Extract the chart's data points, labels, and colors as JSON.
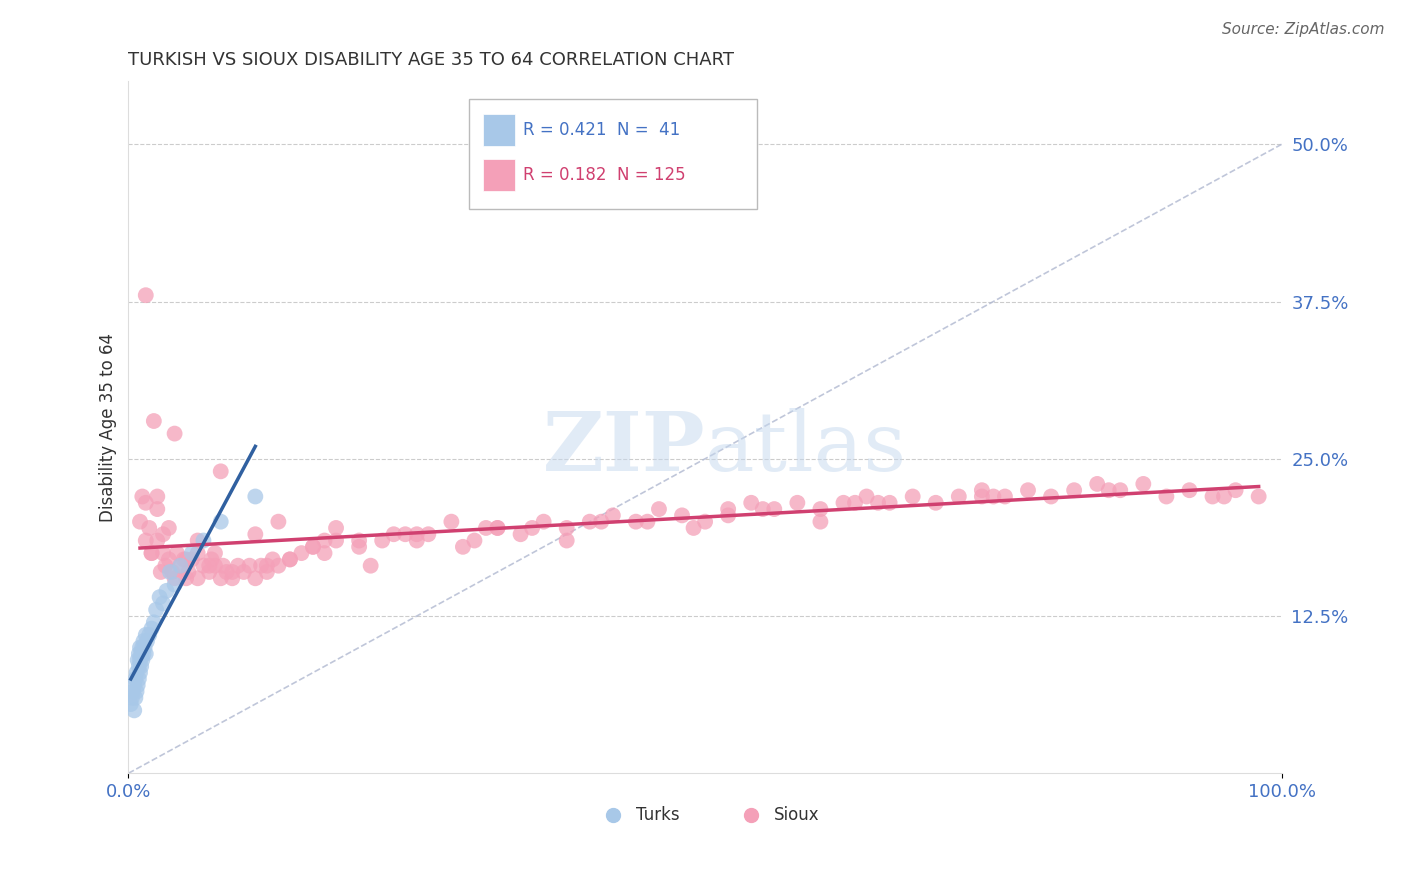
{
  "title": "TURKISH VS SIOUX DISABILITY AGE 35 TO 64 CORRELATION CHART",
  "source": "Source: ZipAtlas.com",
  "ylabel": "Disability Age 35 to 64",
  "turks_R": 0.421,
  "turks_N": 41,
  "sioux_R": 0.182,
  "sioux_N": 125,
  "turks_color": "#a8c8e8",
  "sioux_color": "#f4a0b8",
  "turks_line_color": "#3060a0",
  "sioux_line_color": "#d04070",
  "diagonal_color": "#b0b8d0",
  "background_color": "#ffffff",
  "grid_color": "#cccccc",
  "tick_label_color": "#4472c4",
  "title_color": "#333333",
  "source_color": "#666666",
  "ylabel_color": "#333333",
  "xlim": [
    0.0,
    1.0
  ],
  "ylim": [
    0.0,
    0.55
  ],
  "yticks": [
    0.0,
    0.125,
    0.25,
    0.375,
    0.5
  ],
  "ytick_labels": [
    "",
    "12.5%",
    "25.0%",
    "37.5%",
    "50.0%"
  ],
  "turks_x": [
    0.002,
    0.003,
    0.004,
    0.005,
    0.005,
    0.006,
    0.006,
    0.007,
    0.007,
    0.008,
    0.008,
    0.009,
    0.009,
    0.009,
    0.01,
    0.01,
    0.01,
    0.011,
    0.011,
    0.012,
    0.012,
    0.013,
    0.013,
    0.014,
    0.015,
    0.015,
    0.016,
    0.018,
    0.02,
    0.022,
    0.024,
    0.027,
    0.03,
    0.033,
    0.036,
    0.04,
    0.045,
    0.055,
    0.065,
    0.08,
    0.11
  ],
  "turks_y": [
    0.055,
    0.06,
    0.065,
    0.05,
    0.07,
    0.06,
    0.075,
    0.065,
    0.08,
    0.07,
    0.09,
    0.075,
    0.085,
    0.095,
    0.08,
    0.09,
    0.1,
    0.085,
    0.095,
    0.09,
    0.1,
    0.095,
    0.105,
    0.1,
    0.095,
    0.11,
    0.105,
    0.11,
    0.115,
    0.12,
    0.13,
    0.14,
    0.135,
    0.145,
    0.16,
    0.15,
    0.165,
    0.175,
    0.185,
    0.2,
    0.22
  ],
  "sioux_x": [
    0.01,
    0.012,
    0.015,
    0.015,
    0.018,
    0.02,
    0.022,
    0.025,
    0.025,
    0.028,
    0.03,
    0.032,
    0.035,
    0.035,
    0.038,
    0.04,
    0.042,
    0.045,
    0.048,
    0.05,
    0.052,
    0.055,
    0.06,
    0.06,
    0.065,
    0.07,
    0.072,
    0.075,
    0.08,
    0.082,
    0.085,
    0.09,
    0.095,
    0.1,
    0.105,
    0.11,
    0.115,
    0.12,
    0.125,
    0.13,
    0.14,
    0.15,
    0.16,
    0.17,
    0.18,
    0.2,
    0.22,
    0.24,
    0.26,
    0.28,
    0.3,
    0.32,
    0.34,
    0.36,
    0.38,
    0.4,
    0.42,
    0.44,
    0.46,
    0.48,
    0.5,
    0.52,
    0.54,
    0.56,
    0.58,
    0.6,
    0.62,
    0.64,
    0.66,
    0.68,
    0.7,
    0.72,
    0.74,
    0.76,
    0.78,
    0.8,
    0.82,
    0.84,
    0.86,
    0.88,
    0.9,
    0.92,
    0.94,
    0.96,
    0.98,
    0.015,
    0.03,
    0.05,
    0.07,
    0.09,
    0.12,
    0.16,
    0.2,
    0.25,
    0.32,
    0.04,
    0.08,
    0.13,
    0.18,
    0.25,
    0.35,
    0.45,
    0.55,
    0.65,
    0.75,
    0.02,
    0.06,
    0.11,
    0.17,
    0.23,
    0.31,
    0.41,
    0.52,
    0.63,
    0.74,
    0.85,
    0.95,
    0.025,
    0.075,
    0.14,
    0.21,
    0.29,
    0.38,
    0.49,
    0.6
  ],
  "sioux_y": [
    0.2,
    0.22,
    0.185,
    0.38,
    0.195,
    0.175,
    0.28,
    0.185,
    0.22,
    0.16,
    0.175,
    0.165,
    0.17,
    0.195,
    0.16,
    0.155,
    0.175,
    0.165,
    0.17,
    0.155,
    0.16,
    0.17,
    0.155,
    0.175,
    0.165,
    0.16,
    0.17,
    0.165,
    0.155,
    0.165,
    0.16,
    0.155,
    0.165,
    0.16,
    0.165,
    0.155,
    0.165,
    0.16,
    0.17,
    0.165,
    0.17,
    0.175,
    0.18,
    0.175,
    0.185,
    0.18,
    0.185,
    0.19,
    0.19,
    0.2,
    0.185,
    0.195,
    0.19,
    0.2,
    0.195,
    0.2,
    0.205,
    0.2,
    0.21,
    0.205,
    0.2,
    0.21,
    0.215,
    0.21,
    0.215,
    0.21,
    0.215,
    0.22,
    0.215,
    0.22,
    0.215,
    0.22,
    0.225,
    0.22,
    0.225,
    0.22,
    0.225,
    0.23,
    0.225,
    0.23,
    0.22,
    0.225,
    0.22,
    0.225,
    0.22,
    0.215,
    0.19,
    0.17,
    0.165,
    0.16,
    0.165,
    0.18,
    0.185,
    0.19,
    0.195,
    0.27,
    0.24,
    0.2,
    0.195,
    0.185,
    0.195,
    0.2,
    0.21,
    0.215,
    0.22,
    0.175,
    0.185,
    0.19,
    0.185,
    0.19,
    0.195,
    0.2,
    0.205,
    0.215,
    0.22,
    0.225,
    0.22,
    0.21,
    0.175,
    0.17,
    0.165,
    0.18,
    0.185,
    0.195,
    0.2
  ]
}
